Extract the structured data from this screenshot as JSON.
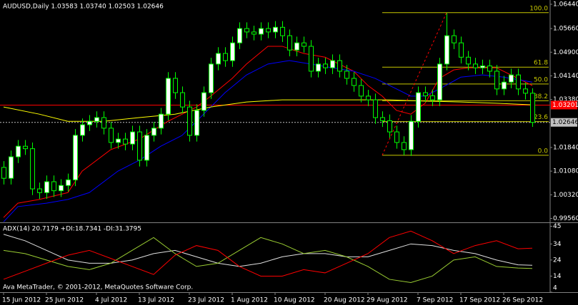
{
  "chart_data": [
    {
      "type": "candlestick",
      "title": "AUDUSD,Daily  1.03583 1.03740 1.02503 1.02646",
      "watermark": "Ava MetaTrader, © 2001-2012, MetaQuotes Software Corp.",
      "bull_color": "#ffffff",
      "bear_color": "#000000",
      "outline_color": "#00ff00",
      "ohlc": [
        [
          1.012,
          1.014,
          1.0065,
          1.0085
        ],
        [
          1.0085,
          1.0174,
          1.0065,
          1.0154
        ],
        [
          1.0154,
          1.0208,
          1.0134,
          1.0188
        ],
        [
          1.0188,
          1.0208,
          1.016,
          1.018
        ],
        [
          1.018,
          1.02,
          1.0031,
          1.0051
        ],
        [
          1.0051,
          1.0071,
          1.0019,
          1.0039
        ],
        [
          1.0039,
          1.0094,
          1.0019,
          1.0074
        ],
        [
          1.0074,
          1.0094,
          1.0025,
          1.0045
        ],
        [
          1.0045,
          1.0082,
          1.0025,
          1.0062
        ],
        [
          1.0062,
          1.01,
          1.0042,
          1.008
        ],
        [
          1.008,
          1.0243,
          1.006,
          1.0223
        ],
        [
          1.0223,
          1.0277,
          1.0203,
          1.0257
        ],
        [
          1.0257,
          1.0288,
          1.0237,
          1.0268
        ],
        [
          1.0268,
          1.03,
          1.0248,
          1.028
        ],
        [
          1.028,
          1.03,
          1.0226,
          1.0246
        ],
        [
          1.0246,
          1.0266,
          1.018,
          1.02
        ],
        [
          1.02,
          1.0231,
          1.018,
          1.0211
        ],
        [
          1.0211,
          1.0231,
          1.0175,
          1.0195
        ],
        [
          1.0195,
          1.0254,
          1.0175,
          1.0234
        ],
        [
          1.0234,
          1.0254,
          1.0123,
          1.0143
        ],
        [
          1.0143,
          1.0243,
          1.0123,
          1.0223
        ],
        [
          1.0223,
          1.0266,
          1.0203,
          1.0246
        ],
        [
          1.0246,
          1.0311,
          1.0226,
          1.0291
        ],
        [
          1.0291,
          1.0426,
          1.0271,
          1.0406
        ],
        [
          1.0406,
          1.0426,
          1.034,
          1.036
        ],
        [
          1.036,
          1.038,
          1.0294,
          1.0314
        ],
        [
          1.0314,
          1.0334,
          1.0203,
          1.0223
        ],
        [
          1.0223,
          1.0323,
          1.0203,
          1.0303
        ],
        [
          1.0303,
          1.038,
          1.0283,
          1.036
        ],
        [
          1.036,
          1.0472,
          1.034,
          1.0452
        ],
        [
          1.0452,
          1.0506,
          1.0432,
          1.0486
        ],
        [
          1.0486,
          1.0506,
          1.0443,
          1.0463
        ],
        [
          1.0463,
          1.054,
          1.0443,
          1.052
        ],
        [
          1.052,
          1.0586,
          1.05,
          1.0566
        ],
        [
          1.0566,
          1.0586,
          1.0535,
          1.0555
        ],
        [
          1.0555,
          1.0575,
          1.0528,
          1.0548
        ],
        [
          1.0548,
          1.0586,
          1.0528,
          1.0566
        ],
        [
          1.0566,
          1.0586,
          1.0535,
          1.0555
        ],
        [
          1.0555,
          1.059,
          1.0535,
          1.057
        ],
        [
          1.057,
          1.059,
          1.0523,
          1.0543
        ],
        [
          1.0543,
          1.0563,
          1.0477,
          1.0497
        ],
        [
          1.0497,
          1.054,
          1.0477,
          1.052
        ],
        [
          1.052,
          1.054,
          1.0489,
          1.0509
        ],
        [
          1.0509,
          1.0529,
          1.0409,
          1.0429
        ],
        [
          1.0429,
          1.0472,
          1.0409,
          1.0452
        ],
        [
          1.0452,
          1.0472,
          1.042,
          1.044
        ],
        [
          1.044,
          1.0483,
          1.042,
          1.0463
        ],
        [
          1.0463,
          1.0483,
          1.0409,
          1.0429
        ],
        [
          1.0429,
          1.0449,
          1.0386,
          1.0406
        ],
        [
          1.0406,
          1.0426,
          1.0363,
          1.0383
        ],
        [
          1.0383,
          1.0403,
          1.0329,
          1.0349
        ],
        [
          1.0349,
          1.0369,
          1.0317,
          1.0337
        ],
        [
          1.0337,
          1.0357,
          1.026,
          1.028
        ],
        [
          1.028,
          1.03,
          1.025,
          1.027
        ],
        [
          1.027,
          1.029,
          1.0214,
          1.0234
        ],
        [
          1.0234,
          1.0254,
          1.018,
          1.02
        ],
        [
          1.02,
          1.022,
          1.0159,
          1.0177
        ],
        [
          1.0177,
          1.0288,
          1.0157,
          1.0268
        ],
        [
          1.0268,
          1.038,
          1.0248,
          1.036
        ],
        [
          1.036,
          1.038,
          1.033,
          1.035
        ],
        [
          1.035,
          1.037,
          1.0317,
          1.0337
        ],
        [
          1.0337,
          1.0472,
          1.0317,
          1.0452
        ],
        [
          1.0452,
          1.0617,
          1.0432,
          1.0543
        ],
        [
          1.0543,
          1.0563,
          1.05,
          1.052
        ],
        [
          1.052,
          1.054,
          1.0454,
          1.0474
        ],
        [
          1.0474,
          1.0494,
          1.0432,
          1.0452
        ],
        [
          1.0452,
          1.0472,
          1.042,
          1.044
        ],
        [
          1.044,
          1.0466,
          1.042,
          1.0446
        ],
        [
          1.0446,
          1.0466,
          1.0409,
          1.0429
        ],
        [
          1.0429,
          1.0449,
          1.0352,
          1.0372
        ],
        [
          1.0372,
          1.0414,
          1.0352,
          1.0394
        ],
        [
          1.0394,
          1.0437,
          1.0374,
          1.0417
        ],
        [
          1.0417,
          1.0437,
          1.0352,
          1.0372
        ],
        [
          1.0372,
          1.0392,
          1.0338,
          1.03583
        ],
        [
          1.03583,
          1.0374,
          1.02503,
          1.02646
        ]
      ],
      "series": [
        {
          "color": "#ff0000",
          "x": [
            0,
            2,
            5,
            9,
            11,
            15,
            19,
            23,
            27,
            29,
            32,
            34,
            37,
            39,
            42,
            45,
            49,
            51,
            53,
            55,
            57,
            59,
            61,
            63,
            65,
            69,
            74
          ],
          "values": [
            0.9959,
            1.0005,
            1.0017,
            1.0039,
            1.0108,
            1.0177,
            1.0211,
            1.0268,
            1.0314,
            1.0349,
            1.0406,
            1.0452,
            1.0509,
            1.0509,
            1.0486,
            1.0474,
            1.0429,
            1.0383,
            1.0349,
            1.0303,
            1.0291,
            1.0326,
            1.0406,
            1.0433,
            1.044,
            1.044,
            1.0383
          ]
        },
        {
          "color": "#0000ff",
          "x": [
            0,
            2,
            6,
            9,
            12,
            16,
            19,
            22,
            25,
            28,
            31,
            34,
            37,
            40,
            43,
            46,
            49,
            52,
            55,
            57,
            59,
            61,
            64,
            67,
            70,
            74
          ],
          "values": [
            0.9945,
            0.9994,
            1.0005,
            1.0017,
            1.0039,
            1.0108,
            1.0143,
            1.0188,
            1.0223,
            1.0291,
            1.036,
            1.0417,
            1.0452,
            1.0463,
            1.0452,
            1.044,
            1.0429,
            1.0406,
            1.0372,
            1.0349,
            1.0349,
            1.0372,
            1.041,
            1.0417,
            1.041,
            1.0394
          ]
        },
        {
          "color": "#ffff00",
          "x": [
            0,
            5,
            9,
            14,
            19,
            24,
            29,
            34,
            39,
            44,
            49,
            54,
            59,
            64,
            69,
            74
          ],
          "values": [
            1.0314,
            1.0291,
            1.0268,
            1.0268,
            1.028,
            1.0291,
            1.0314,
            1.033,
            1.0337,
            1.0337,
            1.0337,
            1.0337,
            1.0333,
            1.033,
            1.0326,
            1.0321
          ]
        }
      ],
      "trendline": {
        "color": "#ff0000",
        "x": [
          53,
          62
        ],
        "values": [
          1.0159,
          1.0617
        ]
      },
      "fib": {
        "color": "#c8c800",
        "levels": [
          {
            "value": 100,
            "label": "100.0"
          },
          61.8,
          {
            "value": 50,
            "label": "50.0"
          },
          38.2,
          23.6,
          {
            "value": 0,
            "label": "0.0"
          }
        ],
        "prices": [
          1.0617,
          1.0442,
          1.0388,
          1.0334,
          1.0267,
          1.0159
        ]
      },
      "price_lines": [
        {
          "value": 1.03201,
          "label": "1.03201",
          "color": "#ff0000"
        },
        {
          "value": 1.02646,
          "label": "1.02646",
          "color": "#c0c0c0"
        }
      ],
      "ylim": [
        0.99435,
        1.06577
      ],
      "yticks": [
        {
          "value": 1.0644,
          "label": "1.06440"
        },
        {
          "value": 1.0566,
          "label": "1.05660"
        },
        {
          "value": 1.049,
          "label": "1.04900"
        },
        {
          "value": 1.0414,
          "label": "1.04140"
        },
        {
          "value": 1.0338,
          "label": "1.03380"
        },
        {
          "value": 1.0184,
          "label": "1.01840"
        },
        {
          "value": 1.0108,
          "label": "1.01080"
        },
        {
          "value": 1.0032,
          "label": "1.00320"
        },
        {
          "value": 0.9956,
          "label": "0.99560"
        }
      ],
      "xticks": [
        {
          "value": 0,
          "label": "15 Jun 2012"
        },
        {
          "value": 6,
          "label": "25 Jun 2012"
        },
        {
          "value": 13,
          "label": "4 Jul 2012"
        },
        {
          "value": 19,
          "label": "13 Jul 2012"
        },
        {
          "value": 26,
          "label": "23 Jul 2012"
        },
        {
          "value": 32,
          "label": "1 Aug 2012"
        },
        {
          "value": 38,
          "label": "10 Aug 2012"
        },
        {
          "value": 45,
          "label": "20 Aug 2012"
        },
        {
          "value": 51,
          "label": "29 Aug 2012"
        },
        {
          "value": 58,
          "label": "7 Sep 2012"
        },
        {
          "value": 64,
          "label": "17 Sep 2012"
        },
        {
          "value": 70,
          "label": "26 Sep 2012"
        }
      ]
    },
    {
      "type": "line",
      "title": "ADX(14) 20.7179 +DI:18.7341 -DI:31.3795",
      "x": [
        0,
        3,
        6,
        9,
        12,
        15,
        18,
        21,
        24,
        27,
        30,
        33,
        36,
        39,
        42,
        45,
        48,
        51,
        54,
        57,
        60,
        63,
        66,
        69,
        72,
        74
      ],
      "series": [
        {
          "color": "#e0e0e0",
          "values": [
            40,
            36,
            30,
            24,
            22,
            22,
            24,
            28,
            30,
            26,
            22,
            20,
            22,
            26,
            28,
            28,
            26,
            26,
            30,
            34,
            33,
            30,
            28,
            24,
            21,
            20.7179
          ]
        },
        {
          "color": "#9acd32",
          "values": [
            30,
            28,
            24,
            20,
            18,
            22,
            30,
            38,
            28,
            20,
            22,
            30,
            38,
            34,
            28,
            30,
            26,
            20,
            12,
            10,
            14,
            24,
            26,
            20,
            19,
            18.7341
          ]
        },
        {
          "color": "#ff0000",
          "values": [
            12,
            17,
            22,
            27,
            30,
            25,
            20,
            15,
            27,
            33,
            30,
            20,
            14,
            14,
            18,
            16,
            22,
            28,
            38,
            42,
            36,
            28,
            33,
            36,
            31,
            31.3795
          ]
        }
      ],
      "ylim": [
        4,
        47
      ],
      "yticks": [
        45,
        34,
        24,
        14,
        4
      ]
    }
  ]
}
